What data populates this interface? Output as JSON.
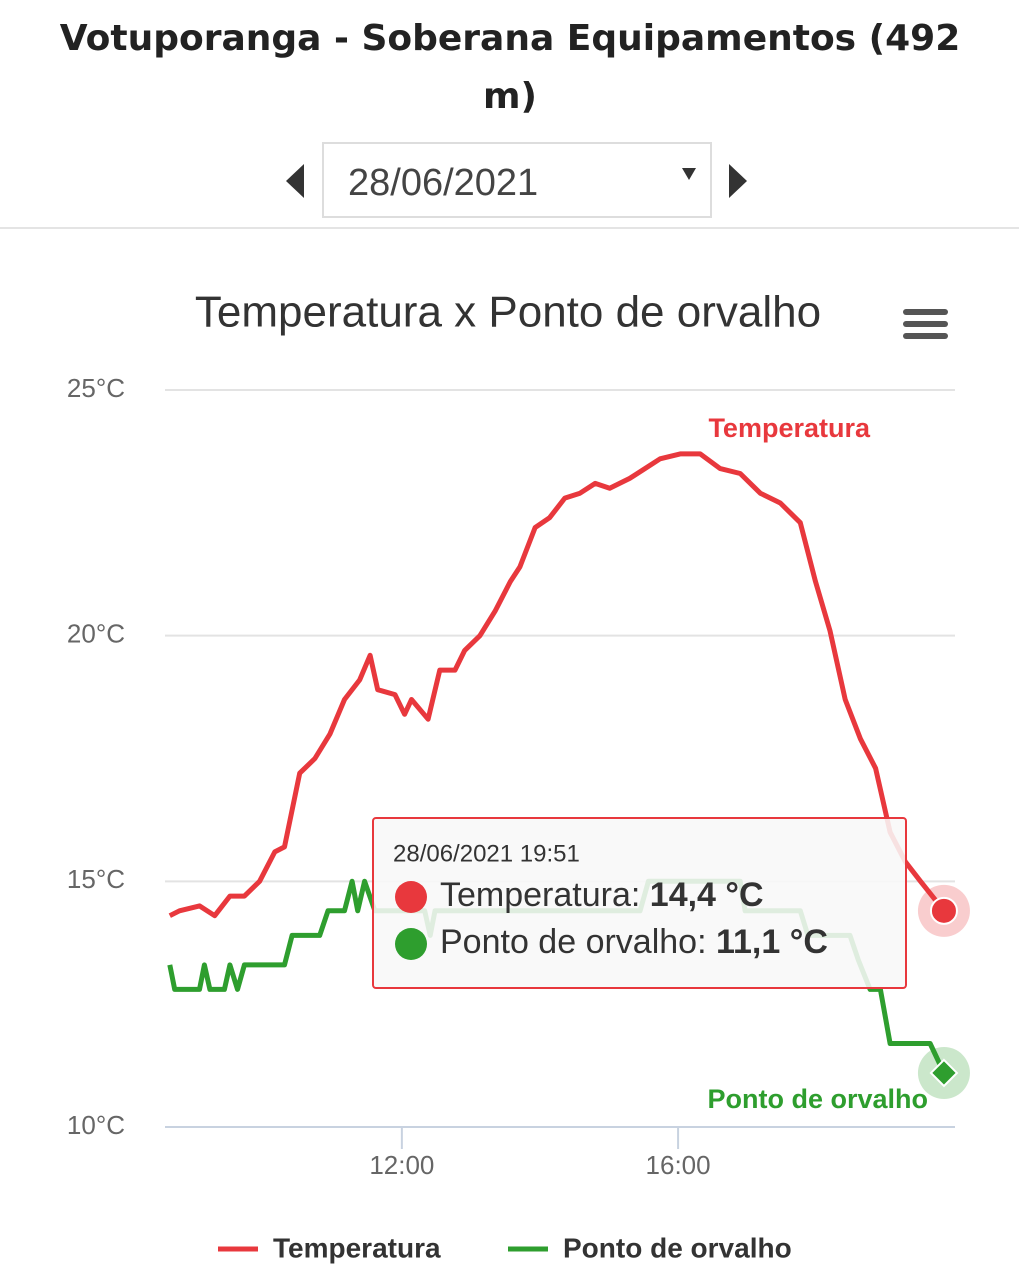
{
  "header": {
    "title": "Votuporanga - Soberana Equipamentos (492 m)",
    "date": "28/06/2021"
  },
  "chart_data": {
    "type": "line",
    "title": "Temperatura x Ponto de orvalho",
    "xlim": [
      8.57,
      20.01
    ],
    "xticks": [
      {
        "value": 12,
        "label": "12:00"
      },
      {
        "value": 16,
        "label": "16:00"
      }
    ],
    "ylim": [
      10,
      25
    ],
    "yticks": [
      {
        "value": 10,
        "label": "10°C"
      },
      {
        "value": 15,
        "label": "15°C"
      },
      {
        "value": 20,
        "label": "20°C"
      },
      {
        "value": 25,
        "label": "25°C"
      }
    ],
    "grid": true,
    "series": [
      {
        "name": "Temperatura",
        "color": "#e8383d",
        "x": [
          8.64,
          8.78,
          9.07,
          9.29,
          9.51,
          9.72,
          9.94,
          10.16,
          10.3,
          10.52,
          10.74,
          10.96,
          11.17,
          11.39,
          11.54,
          11.65,
          11.9,
          12.04,
          12.14,
          12.38,
          12.55,
          12.77,
          12.91,
          13.13,
          13.35,
          13.57,
          13.71,
          13.93,
          14.14,
          14.36,
          14.58,
          14.8,
          15.01,
          15.3,
          15.52,
          15.74,
          16.03,
          16.32,
          16.61,
          16.9,
          17.19,
          17.48,
          17.77,
          17.99,
          18.2,
          18.42,
          18.64,
          18.86,
          19.07,
          19.29,
          19.51,
          19.85
        ],
        "values": [
          14.3,
          14.4,
          14.5,
          14.3,
          14.7,
          14.7,
          15.0,
          15.6,
          15.7,
          17.2,
          17.5,
          18.0,
          18.7,
          19.1,
          19.6,
          18.9,
          18.8,
          18.4,
          18.7,
          18.3,
          19.3,
          19.3,
          19.7,
          20.0,
          20.5,
          21.1,
          21.4,
          22.2,
          22.4,
          22.8,
          22.9,
          23.1,
          23.0,
          23.2,
          23.4,
          23.6,
          23.7,
          23.7,
          23.4,
          23.3,
          22.9,
          22.7,
          22.3,
          21.1,
          20.1,
          18.7,
          17.9,
          17.3,
          16.0,
          15.4,
          15.0,
          14.4
        ]
      },
      {
        "name": "Ponto de orvalho",
        "color": "#2e9e2e",
        "x": [
          8.64,
          8.71,
          9.07,
          9.14,
          9.22,
          9.43,
          9.51,
          9.62,
          9.72,
          10.3,
          10.41,
          10.81,
          10.93,
          11.17,
          11.28,
          11.36,
          11.46,
          11.61,
          12.33,
          12.41,
          12.48,
          15.45,
          15.57,
          16.9,
          16.97,
          17.77,
          17.88,
          18.49,
          18.61,
          18.78,
          18.93,
          19.07,
          19.65,
          19.85
        ],
        "values": [
          13.3,
          12.8,
          12.8,
          13.3,
          12.8,
          12.8,
          13.3,
          12.8,
          13.3,
          13.3,
          13.9,
          13.9,
          14.4,
          14.4,
          15.0,
          14.4,
          15.0,
          14.4,
          14.4,
          13.9,
          14.4,
          14.4,
          15.0,
          15.0,
          14.4,
          14.4,
          13.9,
          13.9,
          13.4,
          12.8,
          12.8,
          11.7,
          11.7,
          11.1
        ]
      }
    ],
    "tooltip": {
      "title": "28/06/2021 19:51",
      "items": [
        {
          "label": "Temperatura:",
          "value": "14,4 °C"
        },
        {
          "label": "Ponto de orvalho:",
          "value": "11,1 °C"
        }
      ]
    }
  }
}
